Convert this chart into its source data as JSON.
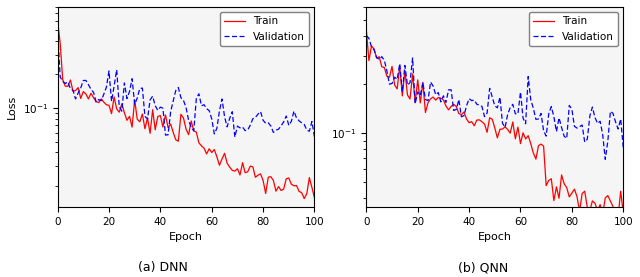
{
  "title_left": "(a) DNN",
  "title_right": "(b) QNN",
  "xlabel": "Epoch",
  "ylabel": "Loss",
  "legend_train": "Train",
  "legend_val": "Validation",
  "train_color": "#ff0000",
  "val_color": "#0000ff",
  "background_color": "#f5f5f5",
  "figsize": [
    6.4,
    2.77
  ],
  "dpi": 100,
  "dnn_ylim": [
    0.013,
    0.8
  ],
  "qnn_ylim": [
    0.035,
    0.6
  ]
}
